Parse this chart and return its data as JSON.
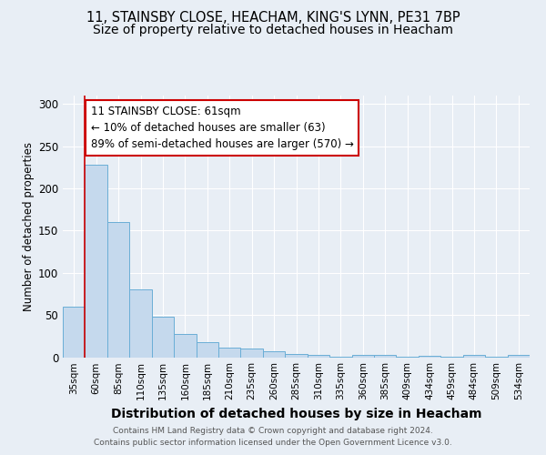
{
  "title_line1": "11, STAINSBY CLOSE, HEACHAM, KING'S LYNN, PE31 7BP",
  "title_line2": "Size of property relative to detached houses in Heacham",
  "xlabel": "Distribution of detached houses by size in Heacham",
  "ylabel": "Number of detached properties",
  "footer": "Contains HM Land Registry data © Crown copyright and database right 2024.\nContains public sector information licensed under the Open Government Licence v3.0.",
  "categories": [
    "35sqm",
    "60sqm",
    "85sqm",
    "110sqm",
    "135sqm",
    "160sqm",
    "185sqm",
    "210sqm",
    "235sqm",
    "260sqm",
    "285sqm",
    "310sqm",
    "335sqm",
    "360sqm",
    "385sqm",
    "409sqm",
    "434sqm",
    "459sqm",
    "484sqm",
    "509sqm",
    "534sqm"
  ],
  "values": [
    60,
    228,
    160,
    80,
    48,
    27,
    18,
    11,
    10,
    7,
    4,
    3,
    1,
    3,
    3,
    1,
    2,
    1,
    3,
    1,
    3
  ],
  "bar_color": "#c5d9ed",
  "bar_edge_color": "#6aaed6",
  "bar_linewidth": 0.7,
  "vline_x": 0.5,
  "vline_color": "#cc0000",
  "vline_linewidth": 1.2,
  "annotation_text": "11 STAINSBY CLOSE: 61sqm\n← 10% of detached houses are smaller (63)\n89% of semi-detached houses are larger (570) →",
  "annotation_box_edge": "#cc0000",
  "annotation_fontsize": 8.5,
  "ylim": [
    0,
    310
  ],
  "yticks": [
    0,
    50,
    100,
    150,
    200,
    250,
    300
  ],
  "title_fontsize1": 10.5,
  "title_fontsize2": 10,
  "xlabel_fontsize": 10,
  "ylabel_fontsize": 8.5,
  "tick_fontsize": 8.5,
  "xtick_fontsize": 7.5,
  "background_color": "#e8eef5",
  "plot_background_color": "#e8eef5",
  "grid_color": "#ffffff",
  "footer_fontsize": 6.5,
  "footer_color": "#555555"
}
